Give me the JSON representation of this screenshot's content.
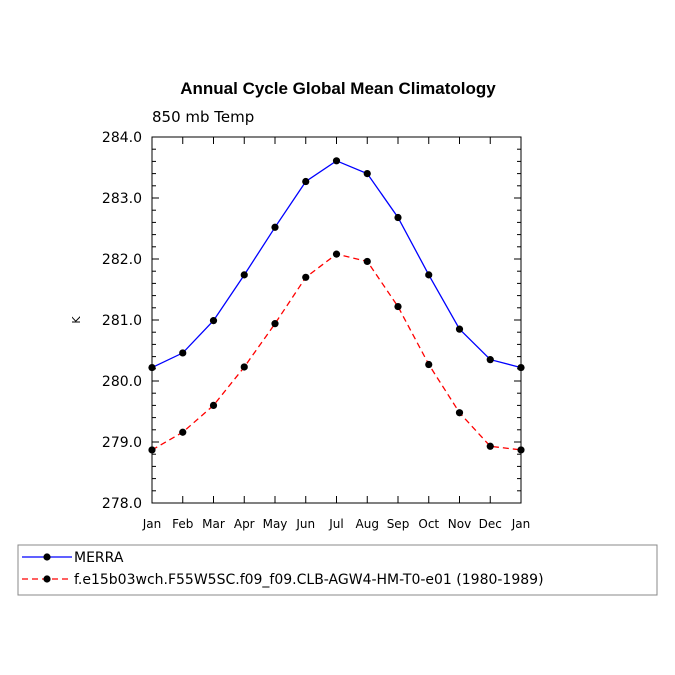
{
  "chart_data": {
    "type": "line",
    "title": "Annual Cycle Global Mean Climatology",
    "subtitle": "850 mb Temp",
    "xlabel": "",
    "ylabel": "K",
    "ylim": [
      278.0,
      284.0
    ],
    "yticks": [
      "278.0",
      "279.0",
      "280.0",
      "281.0",
      "282.0",
      "283.0",
      "284.0"
    ],
    "categories": [
      "Jan",
      "Feb",
      "Mar",
      "Apr",
      "May",
      "Jun",
      "Jul",
      "Aug",
      "Sep",
      "Oct",
      "Nov",
      "Dec",
      "Jan"
    ],
    "grid": false,
    "legend_position": "bottom",
    "series": [
      {
        "name": "MERRA",
        "color": "#0000ff",
        "line_style": "solid",
        "marker": "filled-circle",
        "values": [
          280.22,
          280.46,
          280.99,
          281.74,
          282.52,
          283.27,
          283.61,
          283.4,
          282.68,
          281.74,
          280.85,
          280.35,
          280.22
        ]
      },
      {
        "name": "f.e15b03wch.F55W5SC.f09_f09.CLB-AGW4-HM-T0-e01 (1980-1989)",
        "color": "#ff0000",
        "line_style": "dashed",
        "marker": "filled-circle",
        "values": [
          278.87,
          279.16,
          279.6,
          280.23,
          280.94,
          281.7,
          282.08,
          281.96,
          281.22,
          280.27,
          279.48,
          278.93,
          278.87
        ]
      }
    ]
  }
}
